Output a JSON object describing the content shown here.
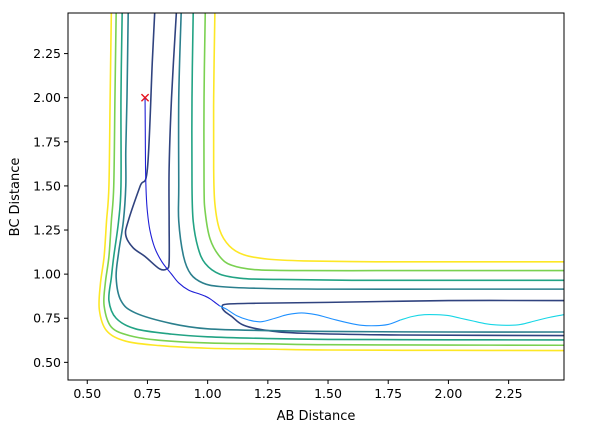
{
  "chart_data": {
    "type": "line",
    "title": "",
    "xlabel": "AB Distance",
    "ylabel": "BC Distance",
    "xlim": [
      0.42,
      2.48
    ],
    "ylim": [
      0.4,
      2.48
    ],
    "xticks": [
      0.5,
      0.75,
      1.0,
      1.25,
      1.5,
      1.75,
      2.0,
      2.25
    ],
    "xtick_labels": [
      "0.50",
      "0.75",
      "1.00",
      "1.25",
      "1.50",
      "1.75",
      "2.00",
      "2.25"
    ],
    "yticks": [
      0.5,
      0.75,
      1.0,
      1.25,
      1.5,
      1.75,
      2.0,
      2.25
    ],
    "ytick_labels": [
      "0.50",
      "0.75",
      "1.00",
      "1.25",
      "1.50",
      "1.75",
      "2.00",
      "2.25"
    ],
    "grid": false,
    "series": [
      {
        "kind": "contour",
        "color": "#30437f",
        "segments": [
          [
            [
              0.78,
              2.48
            ],
            [
              0.77,
              2.2
            ],
            [
              0.75,
              1.6
            ],
            [
              0.72,
              1.5
            ],
            [
              0.67,
              1.3
            ],
            [
              0.66,
              1.22
            ],
            [
              0.69,
              1.15
            ],
            [
              0.74,
              1.1
            ],
            [
              0.8,
              1.03
            ],
            [
              0.83,
              1.03
            ],
            [
              0.84,
              1.07
            ],
            [
              0.84,
              1.3
            ],
            [
              0.84,
              1.6
            ],
            [
              0.85,
              2.0
            ],
            [
              0.87,
              2.48
            ]
          ],
          [
            [
              2.48,
              0.85
            ],
            [
              2.0,
              0.85
            ],
            [
              1.5,
              0.84
            ],
            [
              1.2,
              0.835
            ],
            [
              1.08,
              0.83
            ],
            [
              1.06,
              0.815
            ],
            [
              1.07,
              0.79
            ],
            [
              1.1,
              0.76
            ],
            [
              1.15,
              0.71
            ],
            [
              1.25,
              0.68
            ],
            [
              1.4,
              0.665
            ],
            [
              1.8,
              0.655
            ],
            [
              2.48,
              0.652
            ]
          ]
        ]
      },
      {
        "kind": "contour",
        "color": "#2b7f8d",
        "segments": [
          [
            [
              0.67,
              2.48
            ],
            [
              0.665,
              2.0
            ],
            [
              0.66,
              1.7
            ],
            [
              0.66,
              1.5
            ],
            [
              0.65,
              1.3
            ],
            [
              0.63,
              1.12
            ],
            [
              0.62,
              0.98
            ],
            [
              0.64,
              0.85
            ],
            [
              0.7,
              0.78
            ],
            [
              0.85,
              0.72
            ],
            [
              1.0,
              0.69
            ],
            [
              1.25,
              0.68
            ],
            [
              1.5,
              0.675
            ],
            [
              2.0,
              0.672
            ],
            [
              2.48,
              0.672
            ]
          ]
        ]
      },
      {
        "kind": "contour",
        "color": "#2b7f8d",
        "segments": [
          [
            [
              0.89,
              2.48
            ],
            [
              0.88,
              2.0
            ],
            [
              0.88,
              1.5
            ],
            [
              0.88,
              1.3
            ],
            [
              0.9,
              1.1
            ],
            [
              0.93,
              1.0
            ],
            [
              0.98,
              0.95
            ],
            [
              1.05,
              0.93
            ],
            [
              1.2,
              0.92
            ],
            [
              1.5,
              0.915
            ],
            [
              2.0,
              0.915
            ],
            [
              2.48,
              0.915
            ]
          ]
        ]
      },
      {
        "kind": "contour",
        "color": "#22a384",
        "segments": [
          [
            [
              0.645,
              2.48
            ],
            [
              0.64,
              2.0
            ],
            [
              0.64,
              1.5
            ],
            [
              0.63,
              1.3
            ],
            [
              0.61,
              1.1
            ],
            [
              0.6,
              0.98
            ],
            [
              0.59,
              0.85
            ],
            [
              0.62,
              0.75
            ],
            [
              0.7,
              0.69
            ],
            [
              0.85,
              0.66
            ],
            [
              1.0,
              0.645
            ],
            [
              1.25,
              0.635
            ],
            [
              1.5,
              0.63
            ],
            [
              2.0,
              0.628
            ],
            [
              2.48,
              0.627
            ]
          ],
          [
            [
              0.94,
              2.48
            ],
            [
              0.935,
              2.0
            ],
            [
              0.935,
              1.5
            ],
            [
              0.94,
              1.3
            ],
            [
              0.96,
              1.15
            ],
            [
              0.99,
              1.06
            ],
            [
              1.05,
              1.0
            ],
            [
              1.15,
              0.975
            ],
            [
              1.3,
              0.97
            ],
            [
              1.6,
              0.965
            ],
            [
              2.0,
              0.965
            ],
            [
              2.48,
              0.965
            ]
          ]
        ]
      },
      {
        "kind": "contour",
        "color": "#7ad151",
        "segments": [
          [
            [
              0.62,
              2.48
            ],
            [
              0.615,
              2.0
            ],
            [
              0.61,
              1.5
            ],
            [
              0.6,
              1.3
            ],
            [
              0.59,
              1.1
            ],
            [
              0.575,
              0.95
            ],
            [
              0.57,
              0.82
            ],
            [
              0.6,
              0.7
            ],
            [
              0.68,
              0.65
            ],
            [
              0.8,
              0.625
            ],
            [
              1.0,
              0.61
            ],
            [
              1.25,
              0.605
            ],
            [
              1.5,
              0.6
            ],
            [
              2.0,
              0.598
            ],
            [
              2.48,
              0.597
            ]
          ],
          [
            [
              0.99,
              2.48
            ],
            [
              0.985,
              2.0
            ],
            [
              0.985,
              1.5
            ],
            [
              0.99,
              1.35
            ],
            [
              1.01,
              1.2
            ],
            [
              1.05,
              1.1
            ],
            [
              1.1,
              1.05
            ],
            [
              1.2,
              1.025
            ],
            [
              1.4,
              1.02
            ],
            [
              1.7,
              1.02
            ],
            [
              2.0,
              1.02
            ],
            [
              2.48,
              1.02
            ]
          ]
        ]
      },
      {
        "kind": "contour",
        "color": "#fde725",
        "segments": [
          [
            [
              0.6,
              2.48
            ],
            [
              0.595,
              2.0
            ],
            [
              0.59,
              1.5
            ],
            [
              0.58,
              1.3
            ],
            [
              0.57,
              1.1
            ],
            [
              0.555,
              0.95
            ],
            [
              0.55,
              0.8
            ],
            [
              0.58,
              0.68
            ],
            [
              0.66,
              0.62
            ],
            [
              0.8,
              0.595
            ],
            [
              1.0,
              0.58
            ],
            [
              1.25,
              0.575
            ],
            [
              1.5,
              0.57
            ],
            [
              2.0,
              0.568
            ],
            [
              2.48,
              0.567
            ]
          ],
          [
            [
              1.03,
              2.48
            ],
            [
              1.025,
              2.0
            ],
            [
              1.025,
              1.6
            ],
            [
              1.03,
              1.4
            ],
            [
              1.05,
              1.25
            ],
            [
              1.09,
              1.16
            ],
            [
              1.15,
              1.11
            ],
            [
              1.25,
              1.085
            ],
            [
              1.4,
              1.075
            ],
            [
              1.7,
              1.07
            ],
            [
              2.0,
              1.07
            ],
            [
              2.48,
              1.07
            ]
          ]
        ]
      },
      {
        "kind": "trajectory",
        "color": "#1f1fd6",
        "segments": [
          [
            [
              0.74,
              2.0
            ],
            [
              0.741,
              1.8
            ],
            [
              0.742,
              1.6
            ],
            [
              0.745,
              1.45
            ],
            [
              0.75,
              1.35
            ],
            [
              0.76,
              1.25
            ],
            [
              0.78,
              1.15
            ],
            [
              0.81,
              1.07
            ],
            [
              0.85,
              1.0
            ],
            [
              0.88,
              0.95
            ],
            [
              0.92,
              0.91
            ],
            [
              0.96,
              0.89
            ],
            [
              0.99,
              0.875
            ],
            [
              1.01,
              0.86
            ],
            [
              1.03,
              0.84
            ],
            [
              1.05,
              0.82
            ]
          ]
        ]
      },
      {
        "kind": "trajectory",
        "color": "#1e90ff",
        "segments": [
          [
            [
              1.05,
              0.82
            ],
            [
              1.08,
              0.8
            ],
            [
              1.12,
              0.765
            ],
            [
              1.17,
              0.74
            ],
            [
              1.22,
              0.73
            ],
            [
              1.28,
              0.75
            ],
            [
              1.33,
              0.77
            ],
            [
              1.39,
              0.78
            ],
            [
              1.45,
              0.77
            ],
            [
              1.52,
              0.745
            ],
            [
              1.58,
              0.725
            ],
            [
              1.64,
              0.71
            ],
            [
              1.7,
              0.708
            ],
            [
              1.75,
              0.715
            ],
            [
              1.8,
              0.74
            ]
          ]
        ]
      },
      {
        "kind": "trajectory",
        "color": "#17d6e6",
        "segments": [
          [
            [
              1.8,
              0.74
            ],
            [
              1.85,
              0.76
            ],
            [
              1.9,
              0.77
            ],
            [
              1.95,
              0.77
            ],
            [
              2.0,
              0.765
            ],
            [
              2.05,
              0.75
            ],
            [
              2.1,
              0.735
            ],
            [
              2.15,
              0.72
            ],
            [
              2.2,
              0.712
            ],
            [
              2.25,
              0.71
            ],
            [
              2.3,
              0.715
            ],
            [
              2.36,
              0.735
            ],
            [
              2.42,
              0.755
            ],
            [
              2.48,
              0.77
            ]
          ]
        ]
      }
    ],
    "markers": [
      {
        "x": 0.74,
        "y": 2.0,
        "symbol": "x",
        "color": "#e8141e"
      }
    ]
  }
}
